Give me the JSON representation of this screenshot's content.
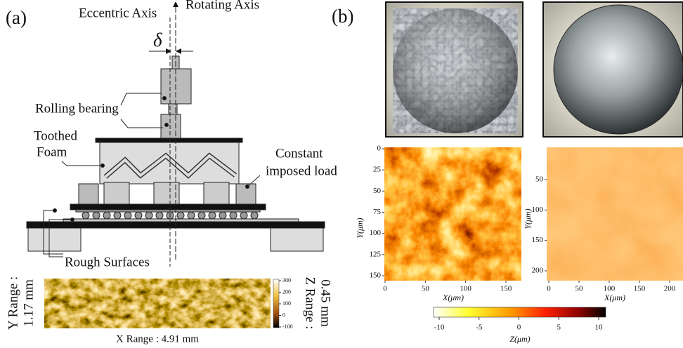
{
  "panel_a": {
    "label": "(a)",
    "eccentric_axis": "Eccentric Axis",
    "rotating_axis": "Rotating Axis",
    "offset_symbol": "δ",
    "rolling_bearing": "Rolling bearing",
    "toothed_foam": [
      "Toothed",
      "Foam"
    ],
    "constant_load": [
      "Constant",
      "imposed load"
    ],
    "rough_surfaces": "Rough Surfaces",
    "surface_map": {
      "y_range": [
        "Y Range :",
        "1.17 mm"
      ],
      "z_range": [
        "Z Range :",
        "0.45 mm"
      ],
      "x_range": "X Range : 4.91 mm",
      "colorbar_ticks": [
        300,
        200,
        100,
        0,
        -100
      ]
    }
  },
  "panel_b": {
    "label": "(b)",
    "maps": [
      {
        "yticks": [
          0,
          25,
          50,
          75,
          100,
          125,
          150
        ],
        "xticks": [
          0,
          50,
          100,
          150
        ],
        "ylabel": "Y(μm)",
        "xlabel": "X(μm)"
      },
      {
        "yticks": [
          50,
          100,
          150,
          200
        ],
        "xticks": [
          0,
          50,
          100,
          150,
          200
        ],
        "ylabel": "Y(μm)",
        "xlabel": "X(μm)"
      }
    ],
    "colorbar": {
      "ticks": [
        -10,
        -5,
        0,
        5,
        10
      ],
      "label": "Z(μm)"
    }
  }
}
